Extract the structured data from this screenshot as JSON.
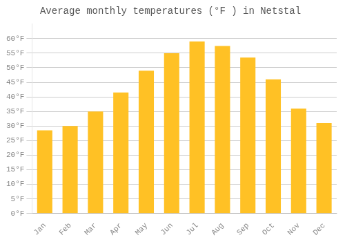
{
  "chart_data": {
    "type": "bar",
    "title": "Average monthly temperatures (°F ) in Netstal",
    "categories": [
      "Jan",
      "Feb",
      "Mar",
      "Apr",
      "May",
      "Jun",
      "Jul",
      "Aug",
      "Sep",
      "Oct",
      "Nov",
      "Dec"
    ],
    "values": [
      28.5,
      30.0,
      35.0,
      41.5,
      49.0,
      55.0,
      59.0,
      57.5,
      53.5,
      46.0,
      36.0,
      31.0
    ],
    "color": "#FFC125",
    "ylim": [
      0,
      65
    ],
    "yticks": [
      {
        "value": 0,
        "label": "0°F"
      },
      {
        "value": 5,
        "label": "5°F"
      },
      {
        "value": 10,
        "label": "10°F"
      },
      {
        "value": 15,
        "label": "15°F"
      },
      {
        "value": 20,
        "label": "20°F"
      },
      {
        "value": 25,
        "label": "25°F"
      },
      {
        "value": 30,
        "label": "30°F"
      },
      {
        "value": 35,
        "label": "35°F"
      },
      {
        "value": 40,
        "label": "40°F"
      },
      {
        "value": 45,
        "label": "45°F"
      },
      {
        "value": 50,
        "label": "50°F"
      },
      {
        "value": 55,
        "label": "55°F"
      },
      {
        "value": 60,
        "label": "60°F"
      }
    ],
    "grid": true
  }
}
